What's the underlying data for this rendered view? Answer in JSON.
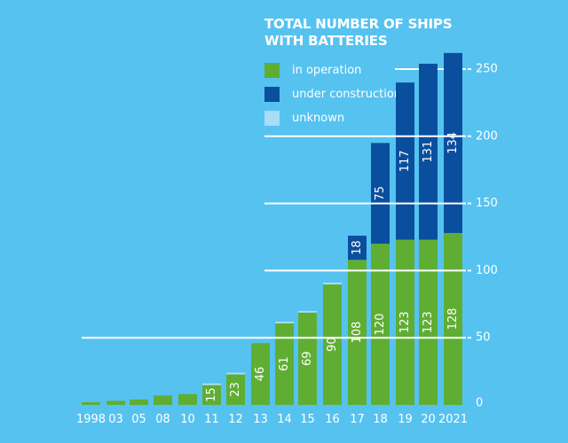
{
  "chart_data": {
    "type": "bar",
    "stacked": true,
    "title": "TOTAL NUMBER OF SHIPS WITH BATTERIES",
    "xlabel": "",
    "ylabel": "",
    "ylim": [
      0,
      260
    ],
    "yticks": [
      0,
      50,
      100,
      150,
      200,
      250
    ],
    "categories": [
      "1998",
      "03",
      "05",
      "08",
      "10",
      "11",
      "12",
      "13",
      "14",
      "15",
      "16",
      "17",
      "18",
      "19",
      "20",
      "2021"
    ],
    "series": [
      {
        "name": "in operation",
        "color": "#5fae33",
        "values": [
          2,
          3,
          4,
          7,
          8,
          15,
          23,
          46,
          61,
          69,
          90,
          108,
          120,
          123,
          123,
          128
        ]
      },
      {
        "name": "under construction",
        "color": "#0a4f9e",
        "values": [
          0,
          0,
          0,
          0,
          0,
          0,
          0,
          0,
          0,
          0,
          0,
          18,
          75,
          117,
          131,
          134
        ]
      },
      {
        "name": "unknown",
        "color": "#a9dcf7",
        "values": [
          0,
          0,
          0,
          0,
          0,
          1,
          1,
          0,
          1,
          1,
          1,
          0,
          0,
          0,
          0,
          0
        ]
      }
    ],
    "data_labels": {
      "in operation": [
        "",
        "",
        "",
        "",
        "",
        "15",
        "23",
        "46",
        "61",
        "69",
        "90",
        "108",
        "120",
        "123",
        "123",
        "128"
      ],
      "under construction": [
        "",
        "",
        "",
        "",
        "",
        "",
        "",
        "",
        "",
        "",
        "",
        "18",
        "75",
        "117",
        "131",
        "134"
      ]
    },
    "legend_position": "top-left",
    "grid": true
  },
  "title_lines": [
    "TOTAL NUMBER OF SHIPS",
    "WITH BATTERIES"
  ],
  "legend": [
    {
      "label": "in operation",
      "color": "#5fae33"
    },
    {
      "label": "under construction",
      "color": "#0a4f9e"
    },
    {
      "label": "unknown",
      "color": "#a9dcf7"
    }
  ]
}
